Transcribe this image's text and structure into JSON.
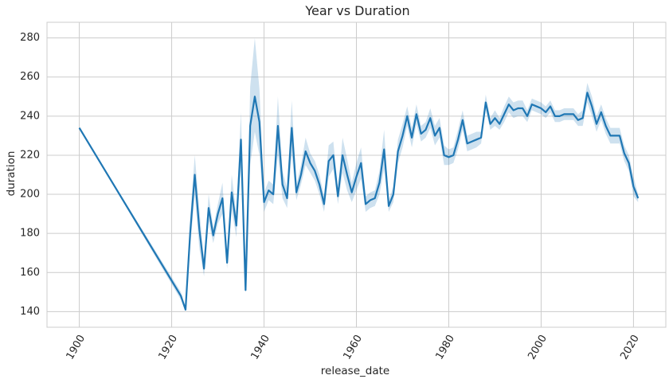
{
  "chart_data": {
    "type": "line",
    "title": "Year vs Duration",
    "xlabel": "release_date",
    "ylabel": "duration",
    "xlim": [
      1893,
      2027
    ],
    "ylim": [
      132,
      288
    ],
    "x_ticks": [
      1900,
      1920,
      1940,
      1960,
      1980,
      2000,
      2020
    ],
    "y_ticks": [
      140,
      160,
      180,
      200,
      220,
      240,
      260,
      280
    ],
    "grid": true,
    "colors": {
      "line": "#1f77b4",
      "band": "#1f77b4",
      "grid": "#cccccc",
      "spine": "#cccccc"
    },
    "series": [
      {
        "x": [
          1900,
          1922,
          1923,
          1924,
          1925,
          1926,
          1927,
          1928,
          1929,
          1930,
          1931,
          1932,
          1933,
          1934,
          1935,
          1936,
          1937,
          1938,
          1939,
          1940,
          1941,
          1942,
          1943,
          1944,
          1945,
          1946,
          1947,
          1948,
          1949,
          1950,
          1951,
          1952,
          1953,
          1954,
          1955,
          1956,
          1957,
          1958,
          1959,
          1960,
          1961,
          1962,
          1963,
          1964,
          1965,
          1966,
          1967,
          1968,
          1969,
          1970,
          1971,
          1972,
          1973,
          1974,
          1975,
          1976,
          1977,
          1978,
          1979,
          1980,
          1981,
          1982,
          1983,
          1984,
          1985,
          1986,
          1987,
          1988,
          1989,
          1990,
          1991,
          1992,
          1993,
          1994,
          1995,
          1996,
          1997,
          1998,
          1999,
          2000,
          2001,
          2002,
          2003,
          2004,
          2005,
          2006,
          2007,
          2008,
          2009,
          2010,
          2011,
          2012,
          2013,
          2014,
          2015,
          2016,
          2017,
          2018,
          2019,
          2020,
          2021
        ],
        "y": [
          234,
          148,
          141,
          180,
          210,
          182,
          162,
          193,
          179,
          190,
          198,
          165,
          201,
          184,
          228,
          151,
          235,
          250,
          237,
          196,
          202,
          200,
          235,
          205,
          198,
          234,
          201,
          210,
          222,
          216,
          212,
          205,
          195,
          217,
          220,
          199,
          220,
          210,
          201,
          209,
          216,
          195,
          197,
          198,
          206,
          223,
          194,
          200,
          222,
          230,
          240,
          229,
          241,
          231,
          233,
          239,
          230,
          234,
          220,
          219,
          220,
          228,
          238,
          226,
          227,
          228,
          229,
          247,
          236,
          239,
          236,
          241,
          246,
          243,
          244,
          244,
          240,
          246,
          245,
          244,
          242,
          245,
          240,
          240,
          241,
          241,
          241,
          238,
          239,
          252,
          245,
          236,
          242,
          235,
          230,
          230,
          230,
          221,
          216,
          204,
          198
        ],
        "lower": [
          234,
          146,
          140,
          172,
          200,
          172,
          158,
          186,
          175,
          185,
          190,
          162,
          192,
          178,
          214,
          150,
          215,
          232,
          220,
          191,
          197,
          195,
          220,
          198,
          193,
          220,
          197,
          205,
          215,
          211,
          207,
          200,
          191,
          209,
          213,
          195,
          211,
          202,
          196,
          202,
          208,
          191,
          193,
          194,
          200,
          213,
          191,
          196,
          216,
          224,
          235,
          224,
          236,
          227,
          229,
          234,
          225,
          229,
          215,
          215,
          216,
          223,
          233,
          222,
          223,
          224,
          226,
          243,
          233,
          235,
          233,
          237,
          242,
          239,
          240,
          240,
          237,
          243,
          242,
          241,
          239,
          242,
          237,
          237,
          238,
          238,
          238,
          235,
          235,
          247,
          240,
          232,
          238,
          231,
          226,
          226,
          226,
          217,
          212,
          199,
          196
        ],
        "upper": [
          234,
          150,
          142,
          188,
          220,
          192,
          166,
          200,
          183,
          195,
          206,
          168,
          210,
          190,
          242,
          152,
          255,
          280,
          254,
          201,
          207,
          205,
          250,
          212,
          203,
          248,
          205,
          215,
          229,
          221,
          217,
          210,
          199,
          225,
          227,
          203,
          229,
          218,
          206,
          216,
          224,
          199,
          201,
          202,
          212,
          233,
          197,
          204,
          228,
          236,
          245,
          234,
          246,
          235,
          237,
          244,
          235,
          239,
          225,
          223,
          224,
          233,
          243,
          230,
          231,
          232,
          232,
          251,
          239,
          243,
          239,
          245,
          250,
          247,
          248,
          248,
          243,
          249,
          248,
          247,
          245,
          248,
          243,
          243,
          244,
          244,
          244,
          241,
          243,
          257,
          250,
          240,
          246,
          239,
          234,
          234,
          234,
          225,
          220,
          209,
          200
        ]
      }
    ]
  }
}
